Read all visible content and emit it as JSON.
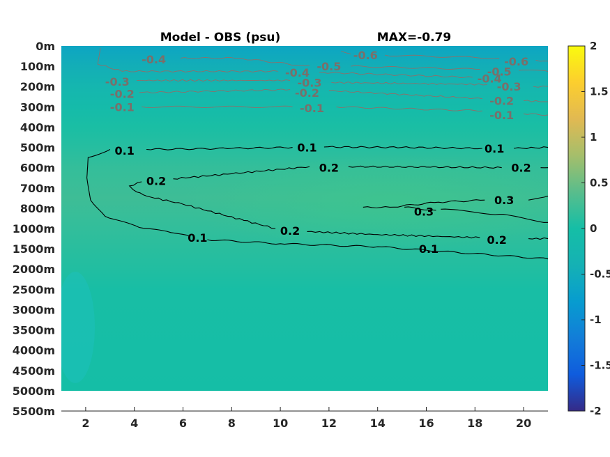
{
  "chart_data": {
    "type": "heatmap",
    "title": "Model - OBS (psu)",
    "subtitle": "MAX=-0.79",
    "x_ticks": [
      2,
      4,
      6,
      8,
      10,
      12,
      14,
      16,
      18,
      20
    ],
    "xlim": [
      1,
      21
    ],
    "y_tick_labels": [
      "0m",
      "100m",
      "200m",
      "300m",
      "400m",
      "500m",
      "600m",
      "700m",
      "800m",
      "1000m",
      "1500m",
      "2000m",
      "2500m",
      "3000m",
      "3500m",
      "4000m",
      "4500m",
      "5000m",
      "5500m"
    ],
    "colorbar": {
      "range": [
        -2,
        2
      ],
      "tick_values": [
        2,
        1.5,
        1,
        0.5,
        0,
        -0.5,
        -1,
        -1.5,
        -2
      ],
      "tick_labels": [
        "2",
        "1.5",
        "1",
        "0.5",
        "0",
        "-0.5",
        "-1",
        "-1.5",
        "-2"
      ]
    },
    "contour_labels": [
      {
        "value": "-0.4",
        "x": 4.8,
        "depth_index": 0.65,
        "color": "grey"
      },
      {
        "value": "-0.6",
        "x": 13.5,
        "depth_index": 0.45,
        "color": "grey"
      },
      {
        "value": "-0.6",
        "x": 19.7,
        "depth_index": 0.75,
        "color": "grey"
      },
      {
        "value": "-0.4",
        "x": 10.7,
        "depth_index": 1.3,
        "color": "grey"
      },
      {
        "value": "-0.5",
        "x": 12.0,
        "depth_index": 1.0,
        "color": "grey"
      },
      {
        "value": "-0.5",
        "x": 19.0,
        "depth_index": 1.25,
        "color": "grey"
      },
      {
        "value": "-0.3",
        "x": 3.3,
        "depth_index": 1.75,
        "color": "grey"
      },
      {
        "value": "-0.3",
        "x": 11.2,
        "depth_index": 1.8,
        "color": "grey"
      },
      {
        "value": "-0.4",
        "x": 18.6,
        "depth_index": 1.6,
        "color": "grey"
      },
      {
        "value": "-0.3",
        "x": 19.4,
        "depth_index": 2.0,
        "color": "grey"
      },
      {
        "value": "-0.2",
        "x": 3.5,
        "depth_index": 2.35,
        "color": "grey"
      },
      {
        "value": "-0.2",
        "x": 11.1,
        "depth_index": 2.3,
        "color": "grey"
      },
      {
        "value": "-0.2",
        "x": 19.1,
        "depth_index": 2.7,
        "color": "grey"
      },
      {
        "value": "-0.1",
        "x": 3.5,
        "depth_index": 3.0,
        "color": "grey"
      },
      {
        "value": "-0.1",
        "x": 11.3,
        "depth_index": 3.05,
        "color": "grey"
      },
      {
        "value": "-0.1",
        "x": 19.1,
        "depth_index": 3.4,
        "color": "grey"
      },
      {
        "value": "0.1",
        "x": 3.6,
        "depth_index": 5.15,
        "color": "black"
      },
      {
        "value": "0.1",
        "x": 11.1,
        "depth_index": 5.0,
        "color": "black"
      },
      {
        "value": "0.1",
        "x": 18.8,
        "depth_index": 5.05,
        "color": "black"
      },
      {
        "value": "0.2",
        "x": 12.0,
        "depth_index": 6.0,
        "color": "black"
      },
      {
        "value": "0.2",
        "x": 19.9,
        "depth_index": 6.0,
        "color": "black"
      },
      {
        "value": "0.2",
        "x": 4.9,
        "depth_index": 6.65,
        "color": "black"
      },
      {
        "value": "0.3",
        "x": 19.2,
        "depth_index": 7.6,
        "color": "black"
      },
      {
        "value": "0.3",
        "x": 15.9,
        "depth_index": 8.15,
        "color": "black"
      },
      {
        "value": "0.2",
        "x": 10.4,
        "depth_index": 9.1,
        "color": "black"
      },
      {
        "value": "0.1",
        "x": 6.6,
        "depth_index": 9.45,
        "color": "black"
      },
      {
        "value": "0.2",
        "x": 18.9,
        "depth_index": 9.55,
        "color": "black"
      },
      {
        "value": "0.1",
        "x": 16.1,
        "depth_index": 10.0,
        "color": "black"
      }
    ],
    "contours": [
      {
        "level": 0.1,
        "color": "black",
        "points": [
          [
            3.0,
            5.1
          ],
          [
            2.1,
            5.5
          ],
          [
            2.05,
            6.5
          ],
          [
            2.2,
            7.6
          ],
          [
            2.8,
            8.4
          ],
          [
            4.2,
            8.95
          ],
          [
            5.5,
            9.2
          ],
          [
            6.3,
            9.4
          ]
        ]
      },
      {
        "level": 0.1,
        "color": "black",
        "points": [
          [
            7.0,
            9.55
          ],
          [
            10,
            9.75
          ],
          [
            14,
            9.9
          ],
          [
            21,
            10.5
          ]
        ]
      },
      {
        "level": 0.1,
        "color": "black",
        "points": [
          [
            4.5,
            5.1
          ],
          [
            8,
            5.05
          ],
          [
            10.5,
            5.0
          ]
        ]
      },
      {
        "level": 0.1,
        "color": "black",
        "points": [
          [
            11.8,
            4.98
          ],
          [
            15,
            5.0
          ],
          [
            18.3,
            5.05
          ]
        ]
      },
      {
        "level": 0.1,
        "color": "black",
        "points": [
          [
            19.6,
            5.05
          ],
          [
            21,
            5.0
          ]
        ]
      },
      {
        "level": 0.2,
        "color": "black",
        "points": [
          [
            4.3,
            6.7
          ],
          [
            3.8,
            6.9
          ],
          [
            4.1,
            7.2
          ],
          [
            4.5,
            7.4
          ],
          [
            6,
            7.8
          ],
          [
            8.5,
            8.6
          ],
          [
            9.8,
            9.0
          ]
        ]
      },
      {
        "level": 0.2,
        "color": "black",
        "points": [
          [
            11.1,
            9.15
          ],
          [
            14,
            9.3
          ],
          [
            18.2,
            9.45
          ]
        ]
      },
      {
        "level": 0.2,
        "color": "black",
        "points": [
          [
            20.2,
            9.5
          ],
          [
            21,
            9.5
          ]
        ]
      },
      {
        "level": 0.2,
        "color": "black",
        "points": [
          [
            5.6,
            6.55
          ],
          [
            8,
            6.3
          ],
          [
            11.2,
            5.95
          ]
        ]
      },
      {
        "level": 0.2,
        "color": "black",
        "points": [
          [
            12.8,
            5.95
          ],
          [
            16,
            5.97
          ],
          [
            19.1,
            6.0
          ]
        ]
      },
      {
        "level": 0.2,
        "color": "black",
        "points": [
          [
            20.7,
            6.0
          ],
          [
            21,
            6.0
          ]
        ]
      },
      {
        "level": 0.3,
        "color": "black",
        "points": [
          [
            13.4,
            7.95
          ],
          [
            14.5,
            7.95
          ],
          [
            16.5,
            7.7
          ],
          [
            18.4,
            7.6
          ]
        ]
      },
      {
        "level": 0.3,
        "color": "black",
        "points": [
          [
            15.1,
            7.95
          ],
          [
            16.4,
            8.1
          ]
        ]
      },
      {
        "level": 0.3,
        "color": "black",
        "points": [
          [
            16.6,
            8.05
          ],
          [
            19,
            8.3
          ],
          [
            21,
            8.7
          ]
        ]
      },
      {
        "level": 0.3,
        "color": "black",
        "points": [
          [
            20.2,
            7.6
          ],
          [
            21,
            7.4
          ]
        ]
      },
      {
        "level": -0.1,
        "color": "grey",
        "points": [
          [
            4.3,
            3.0
          ],
          [
            10.5,
            3.0
          ]
        ]
      },
      {
        "level": -0.1,
        "color": "grey",
        "points": [
          [
            12.3,
            3.0
          ],
          [
            18.3,
            3.2
          ]
        ]
      },
      {
        "level": -0.1,
        "color": "grey",
        "points": [
          [
            20.0,
            3.35
          ],
          [
            21,
            3.4
          ]
        ]
      },
      {
        "level": -0.2,
        "color": "grey",
        "points": [
          [
            4.2,
            2.3
          ],
          [
            10.4,
            2.15
          ]
        ]
      },
      {
        "level": -0.2,
        "color": "grey",
        "points": [
          [
            12.0,
            2.2
          ],
          [
            18.3,
            2.6
          ]
        ]
      },
      {
        "level": -0.2,
        "color": "grey",
        "points": [
          [
            20.0,
            2.7
          ],
          [
            21,
            2.75
          ]
        ]
      },
      {
        "level": -0.3,
        "color": "grey",
        "points": [
          [
            4.1,
            1.7
          ],
          [
            10.4,
            1.7
          ]
        ]
      },
      {
        "level": -0.3,
        "color": "grey",
        "points": [
          [
            12.1,
            1.8
          ],
          [
            18.5,
            1.9
          ]
        ]
      },
      {
        "level": -0.3,
        "color": "grey",
        "points": [
          [
            20.4,
            2.0
          ],
          [
            21,
            2.0
          ]
        ]
      },
      {
        "level": -0.4,
        "color": "grey",
        "points": [
          [
            2.6,
            0.1
          ],
          [
            2.5,
            0.9
          ],
          [
            3.5,
            1.25
          ],
          [
            9.9,
            1.25
          ]
        ]
      },
      {
        "level": -0.4,
        "color": "grey",
        "points": [
          [
            11.6,
            1.3
          ],
          [
            17.9,
            1.55
          ]
        ]
      },
      {
        "level": -0.4,
        "color": "grey",
        "points": [
          [
            5.9,
            0.6
          ],
          [
            8.3,
            0.6
          ],
          [
            10.8,
            0.95
          ],
          [
            11.2,
            0.95
          ]
        ]
      },
      {
        "level": -0.5,
        "color": "grey",
        "points": [
          [
            12.9,
            1.0
          ],
          [
            18.2,
            1.15
          ]
        ]
      },
      {
        "level": -0.5,
        "color": "grey",
        "points": [
          [
            19.8,
            1.2
          ],
          [
            21,
            1.25
          ]
        ]
      },
      {
        "level": -0.6,
        "color": "grey",
        "points": [
          [
            12.5,
            0.25
          ],
          [
            12.9,
            0.4
          ]
        ]
      },
      {
        "level": -0.6,
        "color": "grey",
        "points": [
          [
            14.3,
            0.45
          ],
          [
            19.0,
            0.6
          ]
        ]
      },
      {
        "level": -0.6,
        "color": "grey",
        "points": [
          [
            20.5,
            0.7
          ],
          [
            21,
            0.75
          ]
        ]
      }
    ],
    "color_bands": [
      {
        "depth_index": 0,
        "value": -0.62
      },
      {
        "depth_index": 1,
        "value": -0.45
      },
      {
        "depth_index": 2,
        "value": -0.25
      },
      {
        "depth_index": 3,
        "value": -0.1
      },
      {
        "depth_index": 4,
        "value": 0.03
      },
      {
        "depth_index": 5,
        "value": 0.1
      },
      {
        "depth_index": 6,
        "value": 0.18
      },
      {
        "depth_index": 7.5,
        "value": 0.24
      },
      {
        "depth_index": 9,
        "value": 0.17
      },
      {
        "depth_index": 10,
        "value": 0.12
      },
      {
        "depth_index": 11,
        "value": 0.07
      },
      {
        "depth_index": 12,
        "value": 0.02
      },
      {
        "depth_index": 17,
        "value": 0.0
      }
    ],
    "colormap": "parula",
    "grid": false
  }
}
